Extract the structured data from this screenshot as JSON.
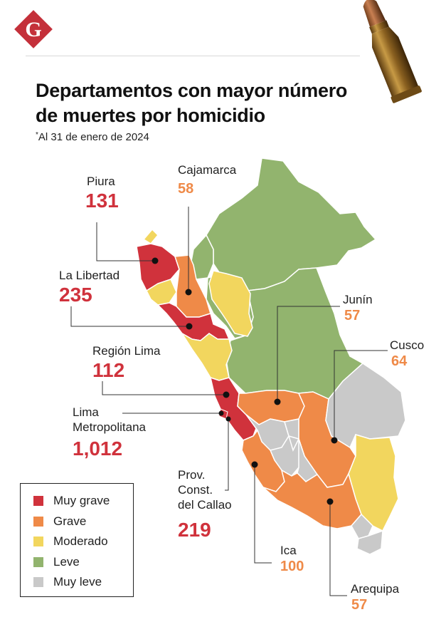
{
  "header": {
    "logo_letter": "G",
    "title_line1": "Departamentos con mayor número",
    "title_line2": "de muertes por homicidio",
    "subtitle_mark": "*",
    "subtitle": "Al 31 de enero de 2024"
  },
  "colors": {
    "muy_grave": "#d0323c",
    "grave": "#ef8a48",
    "moderado": "#f2d65e",
    "leve": "#92b46e",
    "muy_leve": "#c9c9c9",
    "logo": "#c4303a"
  },
  "regions": {
    "piura": {
      "name": "Piura",
      "value": "131"
    },
    "cajamarca": {
      "name": "Cajamarca",
      "value": "58"
    },
    "la_libertad": {
      "name": "La Libertad",
      "value": "235"
    },
    "junin": {
      "name": "Junín",
      "value": "57"
    },
    "region_lima": {
      "name": "Región Lima",
      "value": "112"
    },
    "cusco": {
      "name": "Cusco",
      "value": "64"
    },
    "lima_metro": {
      "name_line1": "Lima",
      "name_line2": "Metropolitana",
      "value": "1,012"
    },
    "callao": {
      "name_line1": "Prov.",
      "name_line2": "Const.",
      "name_line3": "del Callao",
      "value": "219"
    },
    "ica": {
      "name": "Ica",
      "value": "100"
    },
    "arequipa": {
      "name": "Arequipa",
      "value": "57"
    }
  },
  "legend": {
    "items": [
      {
        "label": "Muy grave"
      },
      {
        "label": "Grave"
      },
      {
        "label": "Moderado"
      },
      {
        "label": "Leve"
      },
      {
        "label": "Muy leve"
      }
    ]
  }
}
